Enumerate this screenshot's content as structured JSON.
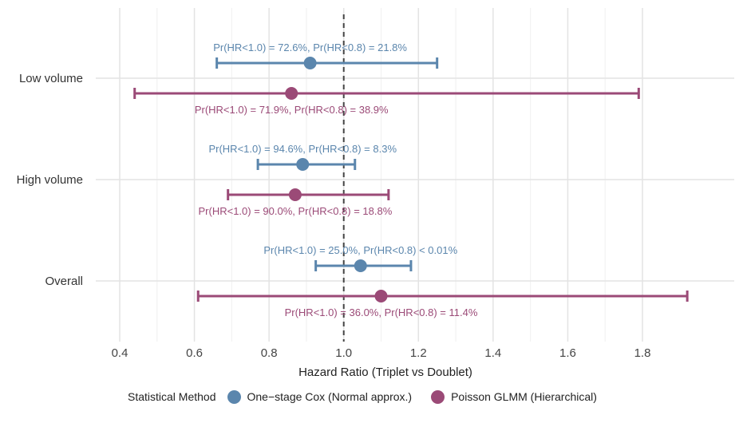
{
  "chart_data": {
    "type": "forest",
    "xlabel": "Hazard Ratio (Triplet vs Doublet)",
    "xlim": [
      0.38,
      1.94
    ],
    "xticks": [
      0.4,
      0.6,
      0.8,
      1.0,
      1.2,
      1.4,
      1.6,
      1.8
    ],
    "xtick_labels": [
      "0.4",
      "0.6",
      "0.8",
      "1.0",
      "1.2",
      "1.4",
      "1.6",
      "1.8"
    ],
    "reference_line": 1.0,
    "grid": true,
    "categories": [
      "Low volume",
      "High volume",
      "Overall"
    ],
    "legend": {
      "title": "Statistical Method",
      "position": "bottom"
    },
    "series": [
      {
        "name": "One−stage Cox (Normal approx.)",
        "color": "#5b86ad",
        "points": [
          {
            "category": "Low volume",
            "estimate": 0.91,
            "lower": 0.66,
            "upper": 1.25,
            "label": "Pr(HR<1.0) = 72.6%, Pr(HR<0.8) = 21.8%"
          },
          {
            "category": "High volume",
            "estimate": 0.89,
            "lower": 0.77,
            "upper": 1.03,
            "label": "Pr(HR<1.0) = 94.6%, Pr(HR<0.8) = 8.3%"
          },
          {
            "category": "Overall",
            "estimate": 1.045,
            "lower": 0.925,
            "upper": 1.18,
            "label": "Pr(HR<1.0) = 25.0%, Pr(HR<0.8) < 0.01%"
          }
        ]
      },
      {
        "name": "Poisson GLMM (Hierarchical)",
        "color": "#9b4a77",
        "points": [
          {
            "category": "Low volume",
            "estimate": 0.86,
            "lower": 0.44,
            "upper": 1.79,
            "label": "Pr(HR<1.0) = 71.9%, Pr(HR<0.8) = 38.9%"
          },
          {
            "category": "High volume",
            "estimate": 0.87,
            "lower": 0.69,
            "upper": 1.12,
            "label": "Pr(HR<1.0) = 90.0%, Pr(HR<0.8) = 18.8%"
          },
          {
            "category": "Overall",
            "estimate": 1.1,
            "lower": 0.61,
            "upper": 1.92,
            "label": "Pr(HR<1.0) = 36.0%, Pr(HR<0.8) = 11.4%"
          }
        ]
      }
    ]
  }
}
